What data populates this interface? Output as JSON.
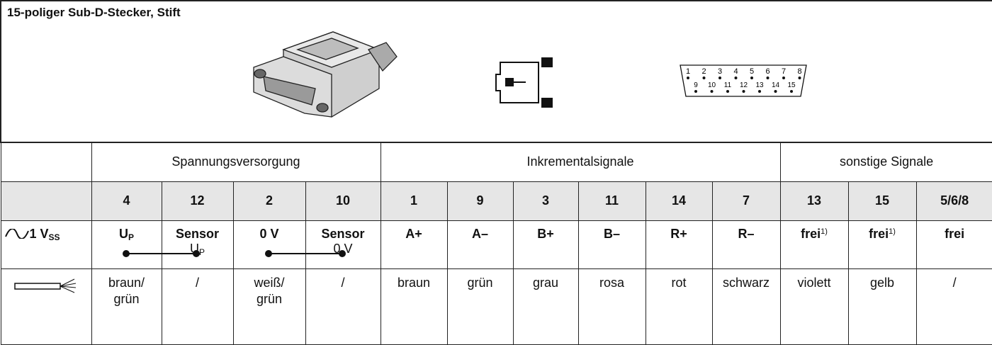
{
  "header": {
    "title": "15-poliger Sub-D-Stecker, Stift"
  },
  "connector_pins": {
    "top": [
      "1",
      "2",
      "3",
      "4",
      "5",
      "6",
      "7",
      "8"
    ],
    "bottom": [
      "9",
      "10",
      "11",
      "12",
      "13",
      "14",
      "15"
    ]
  },
  "table": {
    "groups": [
      "Spannungsversorgung",
      "Inkrementalsignale",
      "sonstige Signale"
    ],
    "pins": [
      "4",
      "12",
      "2",
      "10",
      "1",
      "9",
      "3",
      "11",
      "14",
      "7",
      "13",
      "15",
      "5/6/8"
    ],
    "signal_label": {
      "main": "1 V",
      "sub": "SS"
    },
    "signals": [
      {
        "main": "U",
        "sub": "P"
      },
      {
        "main": "Sensor",
        "line2": "U",
        "line2_sub": "P"
      },
      {
        "main": "0 V"
      },
      {
        "main": "Sensor",
        "line2": "0 V"
      },
      {
        "main": "A+"
      },
      {
        "main": "A–"
      },
      {
        "main": "B+"
      },
      {
        "main": "B–"
      },
      {
        "main": "R+"
      },
      {
        "main": "R–"
      },
      {
        "main": "frei",
        "sup": "1)"
      },
      {
        "main": "frei",
        "sup": "1)"
      },
      {
        "main": "frei"
      }
    ],
    "wires": [
      "braun/\ngrün",
      "/",
      "weiß/\ngrün",
      "/",
      "braun",
      "grün",
      "grau",
      "rosa",
      "rot",
      "schwarz",
      "violett",
      "gelb",
      "/"
    ]
  }
}
